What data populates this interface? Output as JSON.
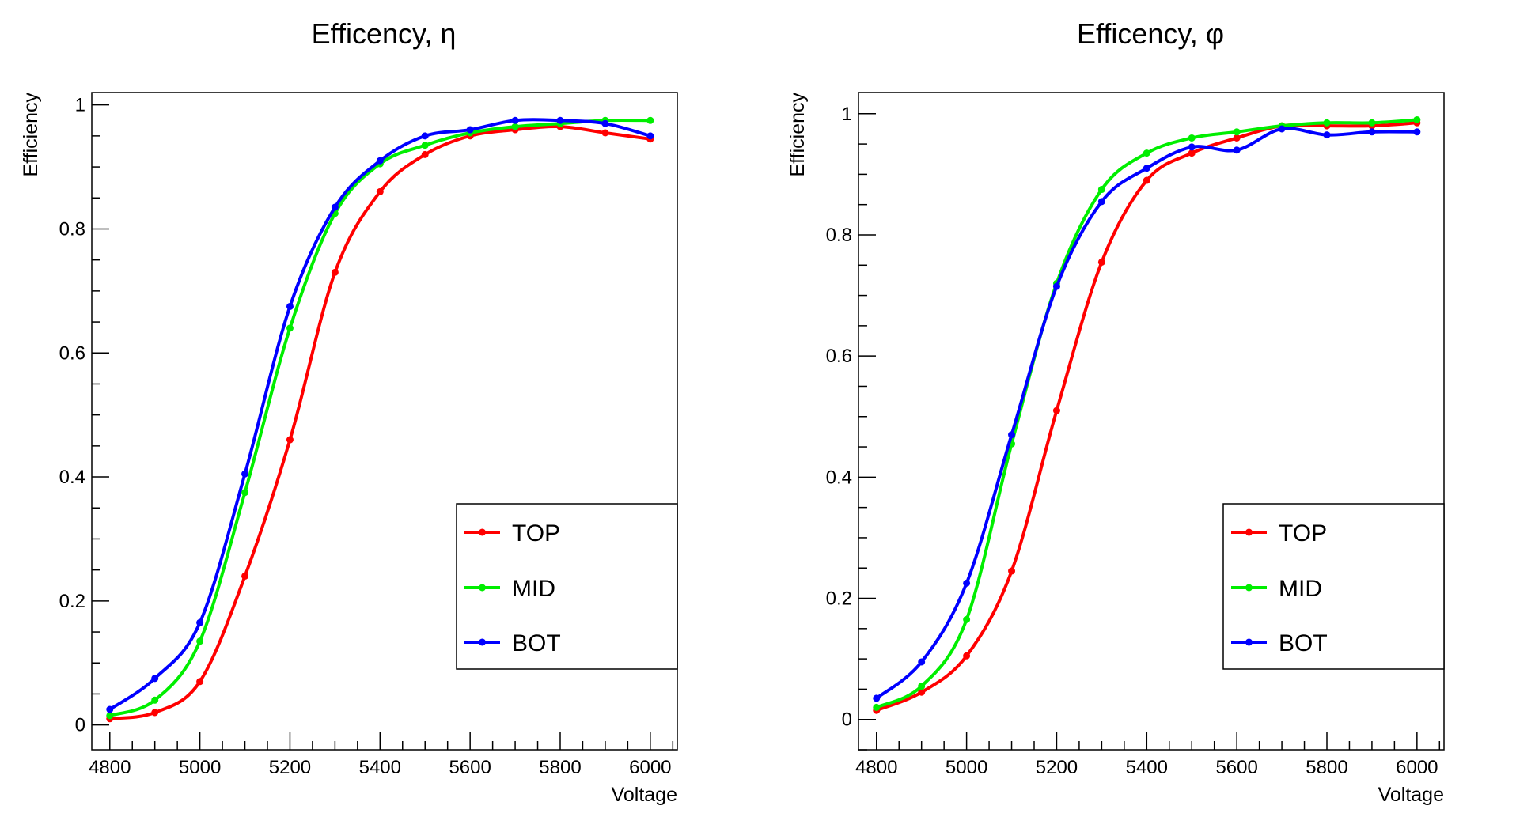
{
  "chart_data": [
    {
      "type": "line",
      "title": "Efficency, η",
      "xlabel": "Voltage",
      "ylabel": "Efficiency",
      "xlim": [
        4760,
        6060
      ],
      "ylim": [
        -0.04,
        1.02
      ],
      "xticks": [
        4800,
        5000,
        5200,
        5400,
        5600,
        5800,
        6000
      ],
      "xtick_labels": [
        "4800",
        "5000",
        "5200",
        "5400",
        "5600",
        "5800",
        "6000"
      ],
      "yticks": [
        0,
        0.2,
        0.4,
        0.6,
        0.8,
        1
      ],
      "ytick_labels": [
        "0",
        "0.2",
        "0.4",
        "0.6",
        "0.8",
        "1"
      ],
      "grid": false,
      "legend_position": "bottom-right",
      "x": [
        4800,
        4900,
        5000,
        5100,
        5200,
        5300,
        5400,
        5500,
        5600,
        5700,
        5800,
        5900,
        6000
      ],
      "series": [
        {
          "name": "TOP",
          "color": "#ff0000",
          "values": [
            0.01,
            0.02,
            0.07,
            0.24,
            0.46,
            0.73,
            0.86,
            0.92,
            0.95,
            0.96,
            0.965,
            0.955,
            0.945
          ]
        },
        {
          "name": "MID",
          "color": "#00ee00",
          "values": [
            0.015,
            0.04,
            0.135,
            0.375,
            0.64,
            0.825,
            0.905,
            0.935,
            0.955,
            0.965,
            0.97,
            0.975,
            0.975
          ]
        },
        {
          "name": "BOT",
          "color": "#0000ff",
          "values": [
            0.025,
            0.075,
            0.165,
            0.405,
            0.675,
            0.835,
            0.91,
            0.95,
            0.96,
            0.975,
            0.975,
            0.97,
            0.95
          ]
        }
      ]
    },
    {
      "type": "line",
      "title": "Efficency, φ",
      "xlabel": "Voltage",
      "ylabel": "Efficiency",
      "xlim": [
        4760,
        6060
      ],
      "ylim": [
        -0.05,
        1.035
      ],
      "xticks": [
        4800,
        5000,
        5200,
        5400,
        5600,
        5800,
        6000
      ],
      "xtick_labels": [
        "4800",
        "5000",
        "5200",
        "5400",
        "5600",
        "5800",
        "6000"
      ],
      "yticks": [
        0,
        0.2,
        0.4,
        0.6,
        0.8,
        1
      ],
      "ytick_labels": [
        "0",
        "0.2",
        "0.4",
        "0.6",
        "0.8",
        "1"
      ],
      "grid": false,
      "legend_position": "bottom-right",
      "x": [
        4800,
        4900,
        5000,
        5100,
        5200,
        5300,
        5400,
        5500,
        5600,
        5700,
        5800,
        5900,
        6000
      ],
      "series": [
        {
          "name": "TOP",
          "color": "#ff0000",
          "values": [
            0.015,
            0.045,
            0.105,
            0.245,
            0.51,
            0.755,
            0.89,
            0.935,
            0.96,
            0.98,
            0.98,
            0.98,
            0.985
          ]
        },
        {
          "name": "MID",
          "color": "#00ee00",
          "values": [
            0.02,
            0.055,
            0.165,
            0.455,
            0.72,
            0.875,
            0.935,
            0.96,
            0.97,
            0.98,
            0.985,
            0.985,
            0.99
          ]
        },
        {
          "name": "BOT",
          "color": "#0000ff",
          "values": [
            0.035,
            0.095,
            0.225,
            0.47,
            0.715,
            0.855,
            0.91,
            0.945,
            0.94,
            0.975,
            0.965,
            0.97,
            0.97
          ]
        }
      ]
    }
  ]
}
